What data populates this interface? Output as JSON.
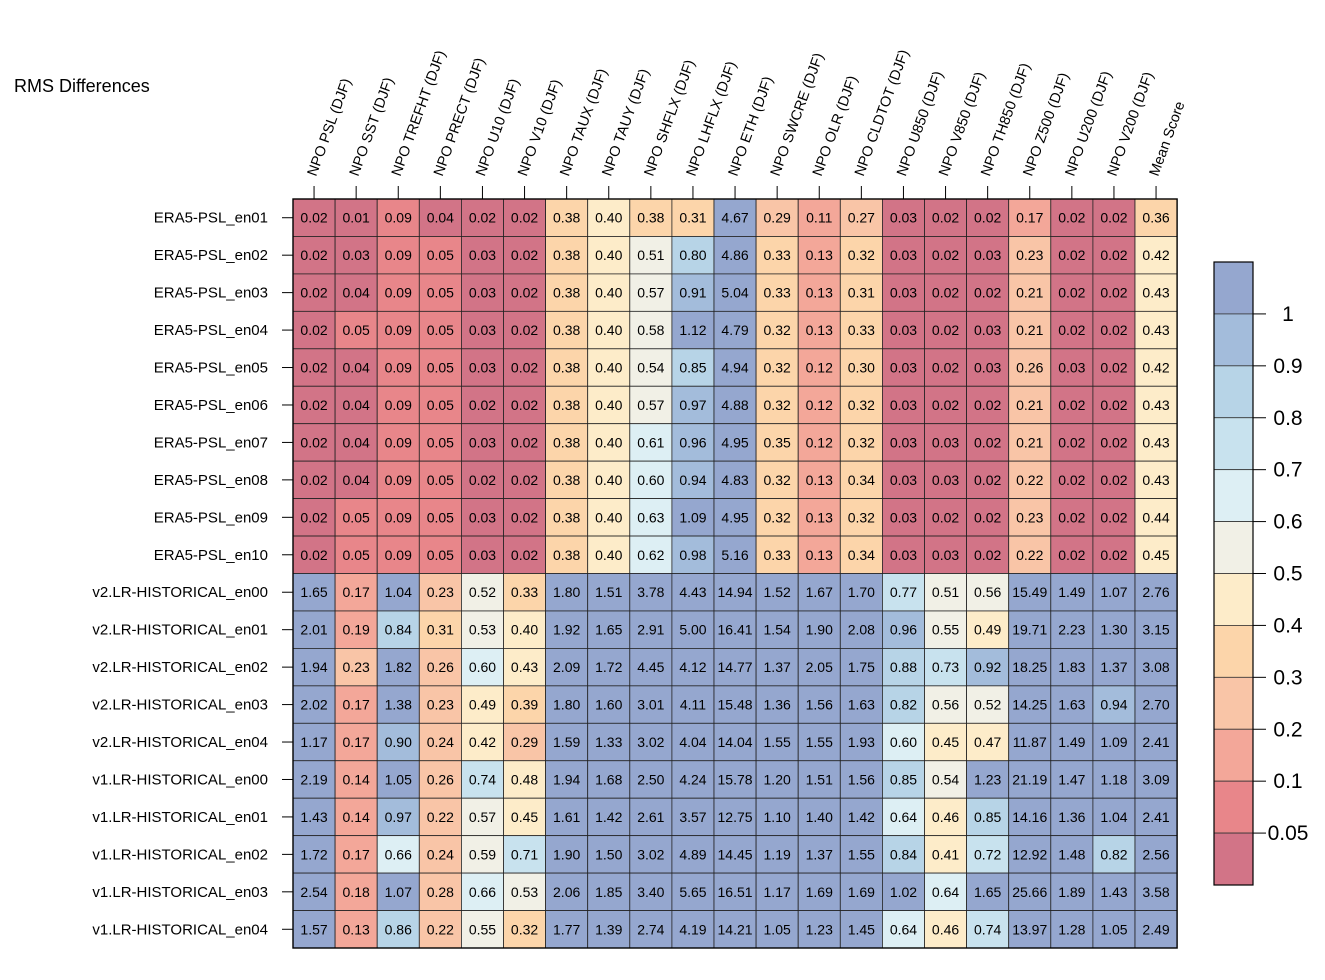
{
  "chart_data": {
    "type": "heatmap",
    "title": "RMS Differences",
    "columns": [
      "NPO PSL (DJF)",
      "NPO SST (DJF)",
      "NPO TREFHT (DJF)",
      "NPO PRECT (DJF)",
      "NPO U10 (DJF)",
      "NPO V10 (DJF)",
      "NPO TAUX (DJF)",
      "NPO TAUY (DJF)",
      "NPO SHFLX (DJF)",
      "NPO LHFLX (DJF)",
      "NPO ETH (DJF)",
      "NPO SWCRE (DJF)",
      "NPO OLR (DJF)",
      "NPO CLDTOT (DJF)",
      "NPO U850 (DJF)",
      "NPO V850 (DJF)",
      "NPO TH850 (DJF)",
      "NPO Z500 (DJF)",
      "NPO U200 (DJF)",
      "NPO V200 (DJF)",
      "Mean Score"
    ],
    "rows": [
      "ERA5-PSL_en01",
      "ERA5-PSL_en02",
      "ERA5-PSL_en03",
      "ERA5-PSL_en04",
      "ERA5-PSL_en05",
      "ERA5-PSL_en06",
      "ERA5-PSL_en07",
      "ERA5-PSL_en08",
      "ERA5-PSL_en09",
      "ERA5-PSL_en10",
      "v2.LR-HISTORICAL_en00",
      "v2.LR-HISTORICAL_en01",
      "v2.LR-HISTORICAL_en02",
      "v2.LR-HISTORICAL_en03",
      "v2.LR-HISTORICAL_en04",
      "v1.LR-HISTORICAL_en00",
      "v1.LR-HISTORICAL_en01",
      "v1.LR-HISTORICAL_en02",
      "v1.LR-HISTORICAL_en03",
      "v1.LR-HISTORICAL_en04"
    ],
    "values": [
      [
        "0.02",
        "0.01",
        "0.09",
        "0.04",
        "0.02",
        "0.02",
        "0.38",
        "0.40",
        "0.38",
        "0.31",
        "4.67",
        "0.29",
        "0.11",
        "0.27",
        "0.03",
        "0.02",
        "0.02",
        "0.17",
        "0.02",
        "0.02",
        "0.36"
      ],
      [
        "0.02",
        "0.03",
        "0.09",
        "0.05",
        "0.03",
        "0.02",
        "0.38",
        "0.40",
        "0.51",
        "0.80",
        "4.86",
        "0.33",
        "0.13",
        "0.32",
        "0.03",
        "0.02",
        "0.03",
        "0.23",
        "0.02",
        "0.02",
        "0.42"
      ],
      [
        "0.02",
        "0.04",
        "0.09",
        "0.05",
        "0.03",
        "0.02",
        "0.38",
        "0.40",
        "0.57",
        "0.91",
        "5.04",
        "0.33",
        "0.13",
        "0.31",
        "0.03",
        "0.02",
        "0.02",
        "0.21",
        "0.02",
        "0.02",
        "0.43"
      ],
      [
        "0.02",
        "0.05",
        "0.09",
        "0.05",
        "0.03",
        "0.02",
        "0.38",
        "0.40",
        "0.58",
        "1.12",
        "4.79",
        "0.32",
        "0.13",
        "0.33",
        "0.03",
        "0.02",
        "0.03",
        "0.21",
        "0.02",
        "0.02",
        "0.43"
      ],
      [
        "0.02",
        "0.04",
        "0.09",
        "0.05",
        "0.03",
        "0.02",
        "0.38",
        "0.40",
        "0.54",
        "0.85",
        "4.94",
        "0.32",
        "0.12",
        "0.30",
        "0.03",
        "0.02",
        "0.03",
        "0.26",
        "0.03",
        "0.02",
        "0.42"
      ],
      [
        "0.02",
        "0.04",
        "0.09",
        "0.05",
        "0.02",
        "0.02",
        "0.38",
        "0.40",
        "0.57",
        "0.97",
        "4.88",
        "0.32",
        "0.12",
        "0.32",
        "0.03",
        "0.02",
        "0.02",
        "0.21",
        "0.02",
        "0.02",
        "0.43"
      ],
      [
        "0.02",
        "0.04",
        "0.09",
        "0.05",
        "0.03",
        "0.02",
        "0.38",
        "0.40",
        "0.61",
        "0.96",
        "4.95",
        "0.35",
        "0.12",
        "0.32",
        "0.03",
        "0.03",
        "0.02",
        "0.21",
        "0.02",
        "0.02",
        "0.43"
      ],
      [
        "0.02",
        "0.04",
        "0.09",
        "0.05",
        "0.02",
        "0.02",
        "0.38",
        "0.40",
        "0.60",
        "0.94",
        "4.83",
        "0.32",
        "0.13",
        "0.34",
        "0.03",
        "0.03",
        "0.02",
        "0.22",
        "0.02",
        "0.02",
        "0.43"
      ],
      [
        "0.02",
        "0.05",
        "0.09",
        "0.05",
        "0.03",
        "0.02",
        "0.38",
        "0.40",
        "0.63",
        "1.09",
        "4.95",
        "0.32",
        "0.13",
        "0.32",
        "0.03",
        "0.02",
        "0.02",
        "0.23",
        "0.02",
        "0.02",
        "0.44"
      ],
      [
        "0.02",
        "0.05",
        "0.09",
        "0.05",
        "0.03",
        "0.02",
        "0.38",
        "0.40",
        "0.62",
        "0.98",
        "5.16",
        "0.33",
        "0.13",
        "0.34",
        "0.03",
        "0.03",
        "0.02",
        "0.22",
        "0.02",
        "0.02",
        "0.45"
      ],
      [
        "1.65",
        "0.17",
        "1.04",
        "0.23",
        "0.52",
        "0.33",
        "1.80",
        "1.51",
        "3.78",
        "4.43",
        "14.94",
        "1.52",
        "1.67",
        "1.70",
        "0.77",
        "0.51",
        "0.56",
        "15.49",
        "1.49",
        "1.07",
        "2.76"
      ],
      [
        "2.01",
        "0.19",
        "0.84",
        "0.31",
        "0.53",
        "0.40",
        "1.92",
        "1.65",
        "2.91",
        "5.00",
        "16.41",
        "1.54",
        "1.90",
        "2.08",
        "0.96",
        "0.55",
        "0.49",
        "19.71",
        "2.23",
        "1.30",
        "3.15"
      ],
      [
        "1.94",
        "0.23",
        "1.82",
        "0.26",
        "0.60",
        "0.43",
        "2.09",
        "1.72",
        "4.45",
        "4.12",
        "14.77",
        "1.37",
        "2.05",
        "1.75",
        "0.88",
        "0.73",
        "0.92",
        "18.25",
        "1.83",
        "1.37",
        "3.08"
      ],
      [
        "2.02",
        "0.17",
        "1.38",
        "0.23",
        "0.49",
        "0.39",
        "1.80",
        "1.60",
        "3.01",
        "4.11",
        "15.48",
        "1.36",
        "1.56",
        "1.63",
        "0.82",
        "0.56",
        "0.52",
        "14.25",
        "1.63",
        "0.94",
        "2.70"
      ],
      [
        "1.17",
        "0.17",
        "0.90",
        "0.24",
        "0.42",
        "0.29",
        "1.59",
        "1.33",
        "3.02",
        "4.04",
        "14.04",
        "1.55",
        "1.55",
        "1.93",
        "0.60",
        "0.45",
        "0.47",
        "11.87",
        "1.49",
        "1.09",
        "2.41"
      ],
      [
        "2.19",
        "0.14",
        "1.05",
        "0.26",
        "0.74",
        "0.48",
        "1.94",
        "1.68",
        "2.50",
        "4.24",
        "15.78",
        "1.20",
        "1.51",
        "1.56",
        "0.85",
        "0.54",
        "1.23",
        "21.19",
        "1.47",
        "1.18",
        "3.09"
      ],
      [
        "1.43",
        "0.14",
        "0.97",
        "0.22",
        "0.57",
        "0.45",
        "1.61",
        "1.42",
        "2.61",
        "3.57",
        "12.75",
        "1.10",
        "1.40",
        "1.42",
        "0.64",
        "0.46",
        "0.85",
        "14.16",
        "1.36",
        "1.04",
        "2.41"
      ],
      [
        "1.72",
        "0.17",
        "0.66",
        "0.24",
        "0.59",
        "0.71",
        "1.90",
        "1.50",
        "3.02",
        "4.89",
        "14.45",
        "1.19",
        "1.37",
        "1.55",
        "0.84",
        "0.41",
        "0.72",
        "12.92",
        "1.48",
        "0.82",
        "2.56"
      ],
      [
        "2.54",
        "0.18",
        "1.07",
        "0.28",
        "0.66",
        "0.53",
        "2.06",
        "1.85",
        "3.40",
        "5.65",
        "16.51",
        "1.17",
        "1.69",
        "1.69",
        "1.02",
        "0.64",
        "1.65",
        "25.66",
        "1.89",
        "1.43",
        "3.58"
      ],
      [
        "1.57",
        "0.13",
        "0.86",
        "0.22",
        "0.55",
        "0.32",
        "1.77",
        "1.39",
        "2.74",
        "4.19",
        "14.21",
        "1.05",
        "1.23",
        "1.45",
        "0.64",
        "0.46",
        "0.74",
        "13.97",
        "1.28",
        "1.05",
        "2.49"
      ]
    ],
    "colorbar": {
      "labels": [
        "1",
        "0.9",
        "0.8",
        "0.7",
        "0.6",
        "0.5",
        "0.4",
        "0.3",
        "0.2",
        "0.1",
        "0.05"
      ],
      "bounds": [
        1.0,
        0.9,
        0.8,
        0.7,
        0.6,
        0.5,
        0.4,
        0.3,
        0.2,
        0.1,
        0.05
      ],
      "colors": [
        "#95a7cf",
        "#a3bcdb",
        "#b7d4e7",
        "#c8e2ee",
        "#ddeff4",
        "#f1f0e6",
        "#fdecc9",
        "#fcd5aa",
        "#f9c5a7",
        "#f3a799",
        "#e8868a",
        "#d27487"
      ]
    }
  }
}
